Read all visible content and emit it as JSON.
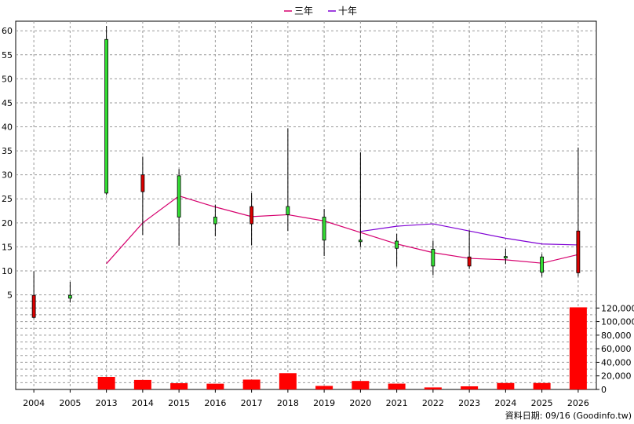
{
  "chart_data": {
    "type": "candlestick",
    "categories": [
      "2004",
      "2005",
      "2013",
      "2014",
      "2015",
      "2016",
      "2017",
      "2018",
      "2019",
      "2020",
      "2021",
      "2022",
      "2023",
      "2024",
      "2025",
      "2026"
    ],
    "candles": [
      {
        "year": "2004",
        "open": 4.9,
        "close": 0.3,
        "high": 9.9,
        "low": 0.1,
        "color": "red"
      },
      {
        "year": "2005",
        "open": 4.3,
        "close": 4.9,
        "high": 7.7,
        "low": 3.4,
        "color": "green"
      },
      {
        "year": "2013",
        "open": 26.2,
        "close": 58.2,
        "high": 61.0,
        "low": 25.8,
        "color": "green"
      },
      {
        "year": "2014",
        "open": 30.0,
        "close": 26.5,
        "high": 33.8,
        "low": 17.5,
        "color": "red"
      },
      {
        "year": "2015",
        "open": 21.2,
        "close": 29.8,
        "high": 31.2,
        "low": 15.2,
        "color": "green"
      },
      {
        "year": "2016",
        "open": 19.8,
        "close": 21.2,
        "high": 23.8,
        "low": 17.2,
        "color": "green"
      },
      {
        "year": "2017",
        "open": 23.4,
        "close": 19.8,
        "high": 26.2,
        "low": 15.3,
        "color": "red"
      },
      {
        "year": "2018",
        "open": 21.7,
        "close": 23.4,
        "high": 39.7,
        "low": 18.3,
        "color": "green"
      },
      {
        "year": "2019",
        "open": 16.4,
        "close": 21.2,
        "high": 22.9,
        "low": 13.1,
        "color": "green"
      },
      {
        "year": "2020",
        "open": 16.2,
        "close": 16.4,
        "high": 34.7,
        "low": 15.0,
        "color": "green"
      },
      {
        "year": "2021",
        "open": 14.7,
        "close": 16.2,
        "high": 17.7,
        "low": 10.9,
        "color": "green"
      },
      {
        "year": "2022",
        "open": 11.0,
        "close": 14.5,
        "high": 16.3,
        "low": 9.1,
        "color": "green"
      },
      {
        "year": "2023",
        "open": 12.9,
        "close": 11.0,
        "high": 18.4,
        "low": 10.4,
        "color": "red"
      },
      {
        "year": "2024",
        "open": 12.9,
        "close": 13.0,
        "high": 14.6,
        "low": 11.4,
        "color": "green"
      },
      {
        "year": "2025",
        "open": 9.7,
        "close": 12.9,
        "high": 13.5,
        "low": 8.8,
        "color": "green"
      },
      {
        "year": "2026",
        "open": 18.3,
        "close": 9.6,
        "high": 35.7,
        "low": 8.8,
        "color": "red"
      }
    ],
    "series": [
      {
        "name": "三年",
        "color": "#d6006e",
        "x": [
          "2013",
          "2014",
          "2015",
          "2016",
          "2017",
          "2018",
          "2019",
          "2020",
          "2021",
          "2022",
          "2023",
          "2024",
          "2025",
          "2026"
        ],
        "values": [
          11.5,
          20.0,
          25.6,
          23.3,
          21.3,
          21.7,
          20.4,
          18.0,
          15.6,
          13.8,
          12.6,
          12.3,
          11.6,
          13.4
        ]
      },
      {
        "name": "十年",
        "color": "#7f00d4",
        "x": [
          "2020",
          "2021",
          "2022",
          "2023",
          "2024",
          "2025",
          "2026"
        ],
        "values": [
          18.2,
          19.3,
          19.8,
          18.3,
          16.8,
          15.6,
          15.4
        ]
      }
    ],
    "volume": {
      "color": "#ff0000",
      "values": [
        0,
        0,
        18500,
        14000,
        9200,
        8500,
        14500,
        24000,
        5200,
        12500,
        8600,
        3000,
        4600,
        9500,
        9500,
        121000
      ]
    },
    "price_axis": {
      "ylim": [
        1,
        62
      ],
      "ticks": [
        5,
        10,
        15,
        20,
        25,
        30,
        35,
        40,
        45,
        50,
        55,
        60
      ]
    },
    "volume_axis": {
      "ylim": [
        0,
        140000
      ],
      "ticks": [
        "0",
        "20,000",
        "40,000",
        "60,000",
        "80,000",
        "100,000",
        "120,000"
      ]
    },
    "legend": {
      "position": "top-center"
    },
    "grid": true,
    "up_color": "#33dd33",
    "down_color": "#dd0000"
  },
  "source_text": "資料日期: 09/16  (Goodinfo.tw)"
}
